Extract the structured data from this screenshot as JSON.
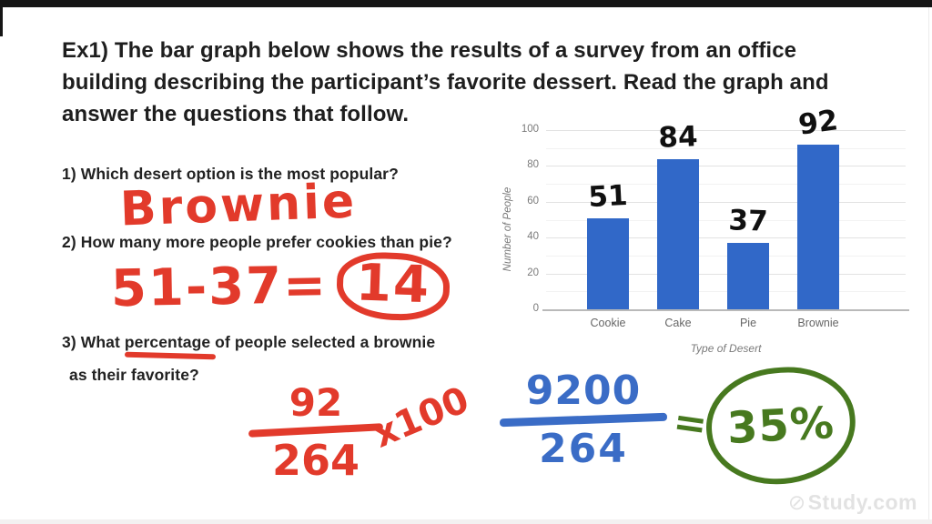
{
  "slide": {
    "title_lines": [
      "Ex1) The bar graph below shows the results of a survey from an office",
      "building describing the participant’s favorite dessert. Read the graph and",
      "answer the questions that follow."
    ],
    "questions": {
      "q1": "1) Which desert option is the most popular?",
      "q2": "2) How many more people prefer cookies than pie?",
      "q3_line1": "3) What percentage of people selected a brownie",
      "q3_line2": "as their favorite?"
    },
    "handwriting": {
      "q1_answer": "Brownie",
      "q2_work": "51-37=",
      "q2_answer": "14",
      "red_fraction": {
        "numerator": "92",
        "denominator": "264",
        "multiplier": "x100"
      },
      "blue_fraction": {
        "numerator": "9200",
        "denominator": "264"
      },
      "equals_sign": "=",
      "final_answer": "35%"
    },
    "colors": {
      "marker_red": "#e23a2b",
      "marker_blue": "#3a6cc6",
      "marker_green": "#47791f",
      "bar_blue": "#3168c8"
    },
    "watermark": {
      "logo_icon": "⊘",
      "text": "Study.com"
    }
  },
  "chart_data": {
    "type": "bar",
    "categories": [
      "Cookie",
      "Cake",
      "Pie",
      "Brownie"
    ],
    "values": [
      51,
      84,
      37,
      92
    ],
    "handwritten_labels": [
      "51",
      "84",
      "37",
      "92"
    ],
    "title": "",
    "xlabel": "Type of Desert",
    "ylabel": "Number of People",
    "ylim": [
      0,
      100
    ],
    "yticks": [
      0,
      20,
      40,
      60,
      80,
      100
    ],
    "grid": true,
    "legend": false,
    "bar_color": "#3168c8"
  }
}
